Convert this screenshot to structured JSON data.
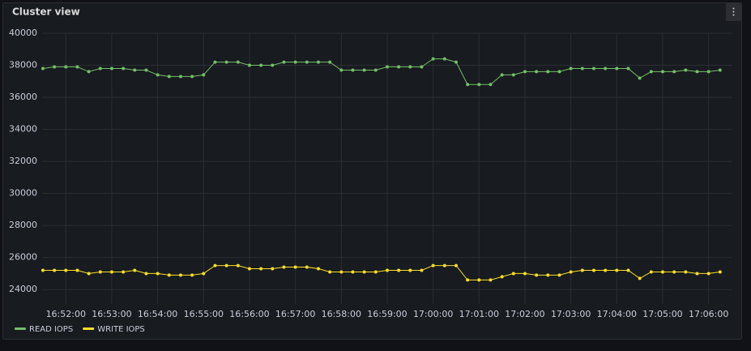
{
  "chart_data": {
    "type": "line",
    "title": "Cluster view",
    "x": [
      "16:51:30",
      "16:51:45",
      "16:52:00",
      "16:52:15",
      "16:52:30",
      "16:52:45",
      "16:53:00",
      "16:53:15",
      "16:53:30",
      "16:53:45",
      "16:54:00",
      "16:54:15",
      "16:54:30",
      "16:54:45",
      "16:55:00",
      "16:55:15",
      "16:55:30",
      "16:55:45",
      "16:56:00",
      "16:56:15",
      "16:56:30",
      "16:56:45",
      "16:57:00",
      "16:57:15",
      "16:57:30",
      "16:57:45",
      "16:58:00",
      "16:58:15",
      "16:58:30",
      "16:58:45",
      "16:59:00",
      "16:59:15",
      "16:59:30",
      "16:59:45",
      "17:00:00",
      "17:00:15",
      "17:00:30",
      "17:00:45",
      "17:01:00",
      "17:01:15",
      "17:01:30",
      "17:01:45",
      "17:02:00",
      "17:02:15",
      "17:02:30",
      "17:02:45",
      "17:03:00",
      "17:03:15",
      "17:03:30",
      "17:03:45",
      "17:04:00",
      "17:04:15",
      "17:04:30",
      "17:04:45",
      "17:05:00",
      "17:05:15",
      "17:05:30",
      "17:05:45",
      "17:06:00",
      "17:06:15"
    ],
    "series": [
      {
        "name": "READ IOPS",
        "color": "#73bf69",
        "values": [
          37800,
          37900,
          37900,
          37900,
          37600,
          37800,
          37800,
          37800,
          37700,
          37700,
          37400,
          37300,
          37300,
          37300,
          37400,
          38200,
          38200,
          38200,
          38000,
          38000,
          38000,
          38200,
          38200,
          38200,
          38200,
          38200,
          37700,
          37700,
          37700,
          37700,
          37900,
          37900,
          37900,
          37900,
          38400,
          38400,
          38200,
          36800,
          36800,
          36800,
          37400,
          37400,
          37600,
          37600,
          37600,
          37600,
          37800,
          37800,
          37800,
          37800,
          37800,
          37800,
          37200,
          37600,
          37600,
          37600,
          37700,
          37600,
          37600,
          37700
        ]
      },
      {
        "name": "WRITE IOPS",
        "color": "#fade2a",
        "values": [
          25200,
          25200,
          25200,
          25200,
          25000,
          25100,
          25100,
          25100,
          25200,
          25000,
          25000,
          24900,
          24900,
          24900,
          25000,
          25500,
          25500,
          25500,
          25300,
          25300,
          25300,
          25400,
          25400,
          25400,
          25300,
          25100,
          25100,
          25100,
          25100,
          25100,
          25200,
          25200,
          25200,
          25200,
          25500,
          25500,
          25500,
          24600,
          24600,
          24600,
          24800,
          25000,
          25000,
          24900,
          24900,
          24900,
          25100,
          25200,
          25200,
          25200,
          25200,
          25200,
          24700,
          25100,
          25100,
          25100,
          25100,
          25000,
          25000,
          25100
        ]
      }
    ],
    "xlim": [
      "16:51:29",
      "17:06:30"
    ],
    "xticks": [
      "16:52:00",
      "16:53:00",
      "16:54:00",
      "16:55:00",
      "16:56:00",
      "16:57:00",
      "16:58:00",
      "16:59:00",
      "17:00:00",
      "17:01:00",
      "17:02:00",
      "17:03:00",
      "17:04:00",
      "17:05:00",
      "17:06:00"
    ],
    "ylim": [
      23100,
      40000
    ],
    "yticks": [
      24000,
      26000,
      28000,
      30000,
      32000,
      34000,
      36000,
      38000,
      40000
    ],
    "grid": true,
    "legend": "bottom-left"
  }
}
